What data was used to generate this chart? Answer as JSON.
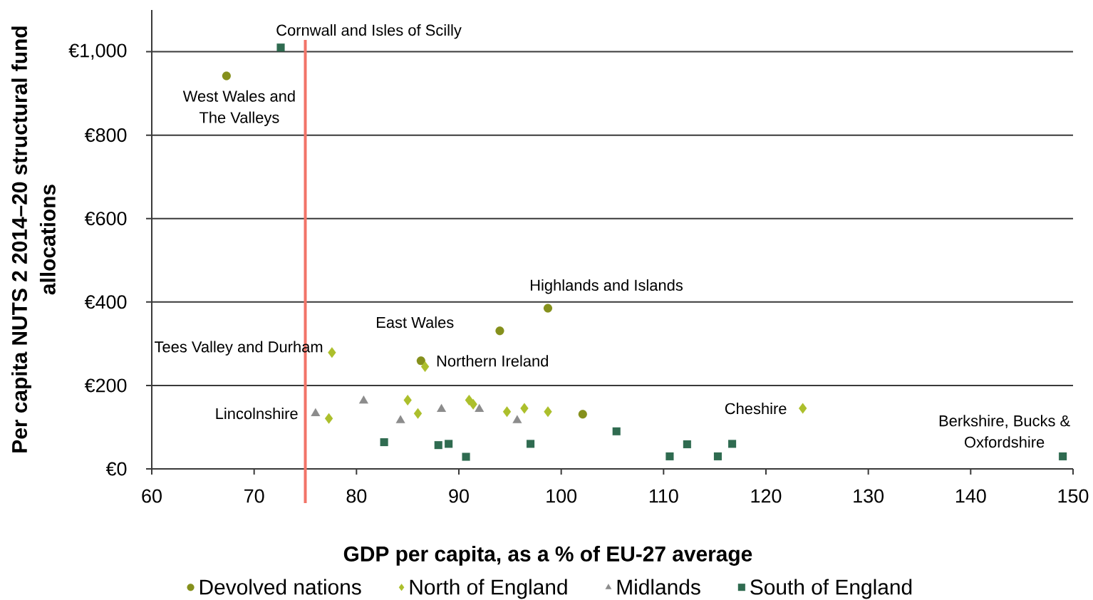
{
  "chart_data": {
    "type": "scatter",
    "xlabel": "GDP per capita, as a % of EU-27 average",
    "ylabel": "Per capita NUTS 2 2014–20 structural fund allocations",
    "xlim": [
      60,
      150
    ],
    "xticks": [
      60,
      70,
      80,
      90,
      100,
      110,
      120,
      130,
      140,
      150
    ],
    "ylim": [
      0,
      1100
    ],
    "yticks": [
      {
        "value": 0,
        "label": "€0"
      },
      {
        "value": 200,
        "label": "€200"
      },
      {
        "value": 400,
        "label": "€400"
      },
      {
        "value": 600,
        "label": "€600"
      },
      {
        "value": 800,
        "label": "€800"
      },
      {
        "value": 1000,
        "label": "€1,000"
      }
    ],
    "grid": "y",
    "legend": "bottom",
    "series": [
      {
        "name": "Devolved nations",
        "color": "#85901c",
        "marker": "circle",
        "x": [
          67.3,
          86.3,
          94.0,
          98.7,
          102.1
        ],
        "values": [
          942,
          259,
          331,
          385,
          131
        ]
      },
      {
        "name": "North of England",
        "color": "#acbf2c",
        "marker": "diamond",
        "x": [
          77.6,
          77.3,
          85.0,
          86.0,
          86.7,
          91.0,
          91.4,
          94.7,
          96.4,
          98.7,
          123.6
        ],
        "values": [
          279,
          121,
          165,
          133,
          245,
          165,
          155,
          137,
          145,
          137,
          145
        ]
      },
      {
        "name": "Midlands",
        "color": "#8c8c8c",
        "marker": "triangle",
        "x": [
          76.0,
          80.7,
          84.3,
          88.3,
          92.0,
          95.7
        ],
        "values": [
          133,
          163,
          116,
          143,
          143,
          116
        ]
      },
      {
        "name": "South of England",
        "color": "#2f6b50",
        "marker": "square",
        "x": [
          72.6,
          82.7,
          88.0,
          89.0,
          90.7,
          97.0,
          105.4,
          110.6,
          112.3,
          115.3,
          116.7,
          149.0
        ],
        "values": [
          1010,
          64,
          57,
          60,
          29,
          60,
          90,
          30,
          59,
          30,
          60,
          30
        ]
      }
    ],
    "ref_lines": [
      {
        "axis": "x",
        "value": 75,
        "color": "#f27468"
      }
    ],
    "annotations": [
      {
        "text": "Cornwall and Isles of Scilly",
        "x": 72.6,
        "y": 1010
      },
      {
        "text": "West Wales and The Valleys",
        "x": 67.3,
        "y": 942
      },
      {
        "text": "Highlands and Islands",
        "x": 98.7,
        "y": 385
      },
      {
        "text": "East Wales",
        "x": 94.0,
        "y": 331
      },
      {
        "text": "Tees Valley and Durham",
        "x": 77.6,
        "y": 279
      },
      {
        "text": "Northern Ireland",
        "x": 86.3,
        "y": 259
      },
      {
        "text": "Lincolnshire",
        "x": 76.0,
        "y": 133
      },
      {
        "text": "Cheshire",
        "x": 123.6,
        "y": 145
      },
      {
        "text": "Berkshire, Bucks & Oxfordshire",
        "x": 149.0,
        "y": 30
      }
    ]
  }
}
